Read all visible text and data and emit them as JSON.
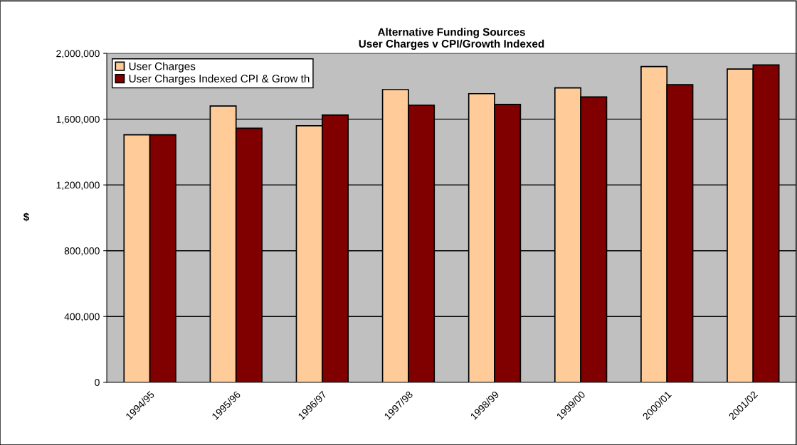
{
  "chart_data": {
    "type": "bar",
    "title": "Alternative Funding Sources\nUser Charges v CPI/Growth Indexed",
    "ylabel": "$",
    "categories": [
      "1994/95",
      "1995/96",
      "1996/97",
      "1997/98",
      "1998/99",
      "1999/00",
      "2000/01",
      "2001/02"
    ],
    "series": [
      {
        "name": "User Charges",
        "color": "#ffcc99",
        "values": [
          1505000,
          1680000,
          1560000,
          1780000,
          1755000,
          1790000,
          1920000,
          1905000
        ]
      },
      {
        "name": "User Charges Indexed CPI & Grow th",
        "color": "#800000",
        "values": [
          1505000,
          1545000,
          1625000,
          1685000,
          1690000,
          1735000,
          1810000,
          1930000
        ]
      }
    ],
    "ylim": [
      0,
      2000000
    ],
    "yticks": [
      {
        "value": 0,
        "label": "0"
      },
      {
        "value": 400000,
        "label": "400,000"
      },
      {
        "value": 800000,
        "label": "800,000"
      },
      {
        "value": 1200000,
        "label": "1,200,000"
      },
      {
        "value": 1600000,
        "label": "1,600,000"
      },
      {
        "value": 2000000,
        "label": "2,000,000"
      }
    ],
    "grid": "y",
    "legend": "top left"
  }
}
